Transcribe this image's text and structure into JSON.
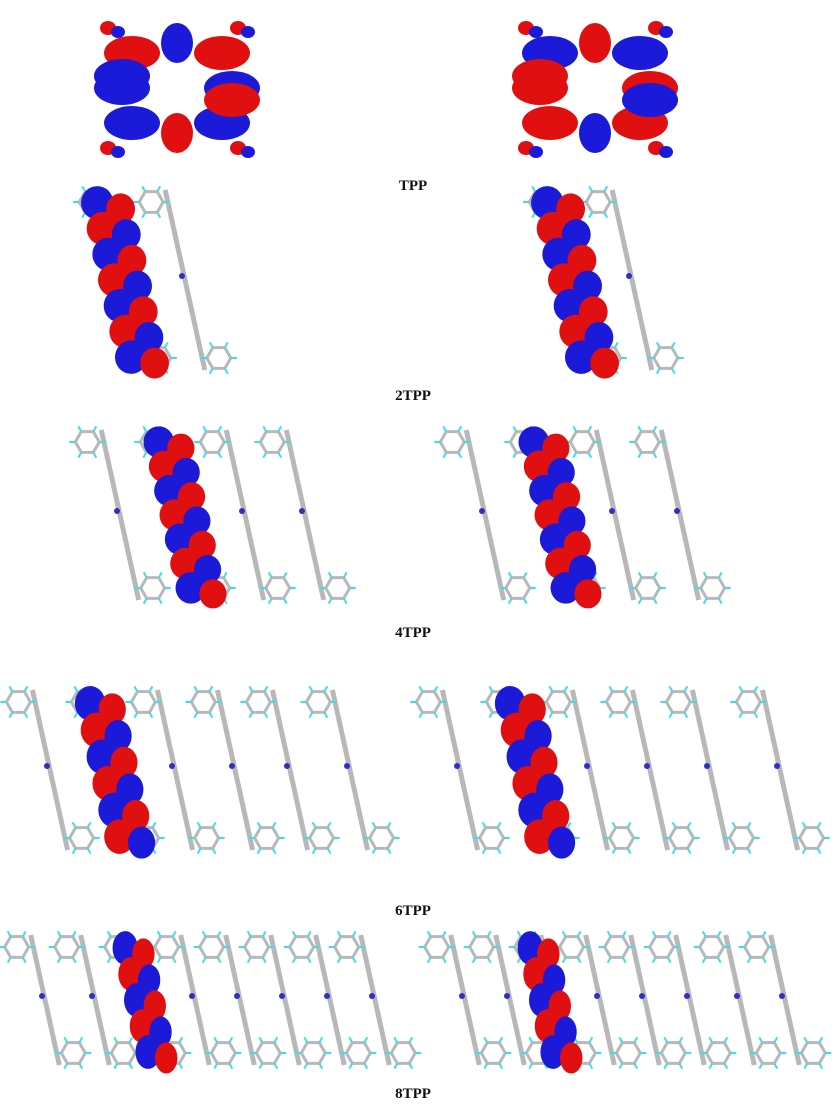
{
  "labels": [
    "TPP",
    "2TPP",
    "4TPP",
    "6TPP",
    "8TPP"
  ]
}
